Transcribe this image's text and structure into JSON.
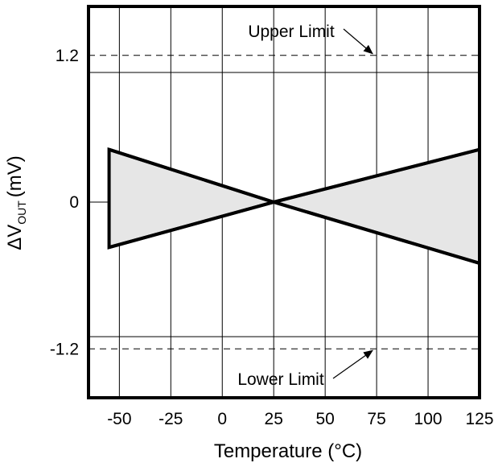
{
  "chart_data": {
    "type": "area",
    "title": "",
    "xlabel": "Temperature (°C)",
    "ylabel_main": "ΔV",
    "ylabel_sub": "OUT",
    "ylabel_unit": "(mV)",
    "xlim": [
      -65,
      125
    ],
    "ylim": [
      -1.6,
      1.6
    ],
    "x_ticks": [
      -50,
      -25,
      0,
      25,
      50,
      75,
      100,
      125
    ],
    "y_tick_labels": [
      {
        "value": 1.2,
        "label": "1.2"
      },
      {
        "value": 0,
        "label": "0"
      },
      {
        "value": -1.2,
        "label": "-1.2"
      }
    ],
    "y_gridlines": [
      1.06,
      0,
      -1.1
    ],
    "grid": true,
    "limits": [
      {
        "name": "Upper Limit",
        "value": 1.2,
        "style": "dashed"
      },
      {
        "name": "Lower Limit",
        "value": -1.2,
        "style": "dashed"
      }
    ],
    "annotations": [
      {
        "text": "Upper Limit",
        "points_to": {
          "x": 75,
          "y": 1.2
        }
      },
      {
        "text": "Lower Limit",
        "points_to": {
          "x": 75,
          "y": -1.2
        }
      }
    ],
    "series": [
      {
        "points": [
          [
            -55,
            0.43
          ],
          [
            25,
            0
          ],
          [
            125,
            0.43
          ]
        ]
      },
      {
        "points": [
          [
            -55,
            -0.37
          ],
          [
            25,
            0
          ],
          [
            125,
            -0.5
          ]
        ]
      }
    ],
    "fill_color": "#e6e6e6",
    "line_color": "#000000"
  }
}
